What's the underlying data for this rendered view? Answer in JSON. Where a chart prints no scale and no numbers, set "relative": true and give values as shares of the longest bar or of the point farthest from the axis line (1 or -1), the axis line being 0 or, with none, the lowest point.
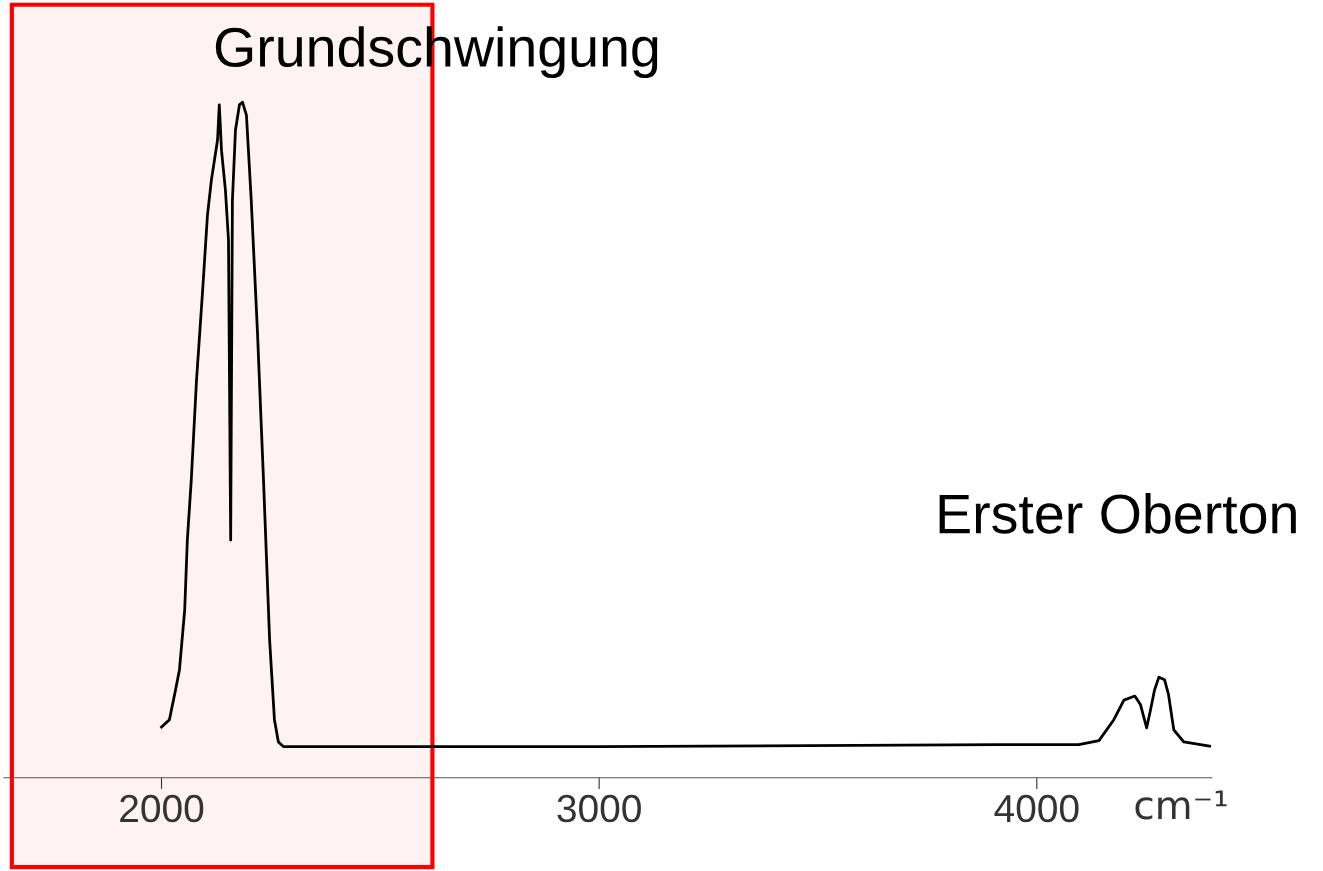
{
  "chart_data": {
    "type": "line",
    "relative": true,
    "xlabel": "cm⁻¹",
    "x": [
      2000,
      2018,
      2032,
      2041,
      2053,
      2059,
      2068,
      2080,
      2094,
      2105,
      2114,
      2128,
      2132,
      2137,
      2146,
      2153,
      2158,
      2162,
      2169,
      2178,
      2185,
      2194,
      2205,
      2219,
      2233,
      2247,
      2258,
      2267,
      2279,
      3000,
      3913,
      4096,
      4142,
      4176,
      4199,
      4224,
      4237,
      4251,
      4260,
      4269,
      4279,
      4292,
      4301,
      4313,
      4336,
      4395
    ],
    "series": [
      {
        "color": "#000000",
        "values": [
          0.075,
          0.086,
          0.13,
          0.16,
          0.249,
          0.352,
          0.441,
          0.589,
          0.722,
          0.833,
          0.885,
          0.944,
          0.996,
          0.929,
          0.87,
          0.796,
          0.352,
          0.855,
          0.959,
          0.996,
          1.0,
          0.981,
          0.855,
          0.663,
          0.441,
          0.204,
          0.086,
          0.053,
          0.046,
          0.046,
          0.049,
          0.049,
          0.055,
          0.086,
          0.115,
          0.121,
          0.108,
          0.074,
          0.101,
          0.13,
          0.149,
          0.145,
          0.123,
          0.071,
          0.053,
          0.047
        ]
      }
    ],
    "xlim": [
      1640,
      4400
    ],
    "xticks": [
      2000,
      3000,
      4000
    ],
    "bands": [
      {
        "axis": "x",
        "from": 1658,
        "to": 2619,
        "color": "#ff0000"
      }
    ],
    "annotations": [
      {
        "text": "Grundschwingung",
        "x": 2185,
        "y": 1.0
      },
      {
        "text": "Erster Oberton",
        "x": 4279,
        "y": 0.149
      }
    ],
    "grid": false,
    "legend": false,
    "marker": "none",
    "line_style": "solid"
  }
}
